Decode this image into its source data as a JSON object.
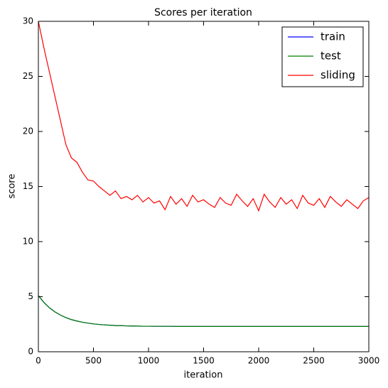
{
  "chart_data": {
    "type": "line",
    "title": "Scores per iteration",
    "xlabel": "iteration",
    "ylabel": "score",
    "x": [
      0,
      50,
      100,
      150,
      200,
      250,
      300,
      350,
      400,
      450,
      500,
      550,
      600,
      650,
      700,
      750,
      800,
      850,
      900,
      950,
      1000,
      1050,
      1100,
      1150,
      1200,
      1250,
      1300,
      1350,
      1400,
      1450,
      1500,
      1550,
      1600,
      1650,
      1700,
      1750,
      1800,
      1850,
      1900,
      1950,
      2000,
      2050,
      2100,
      2150,
      2200,
      2250,
      2300,
      2350,
      2400,
      2450,
      2500,
      2550,
      2600,
      2650,
      2700,
      2750,
      2800,
      2850,
      2900,
      2950,
      3000
    ],
    "series": [
      {
        "name": "train",
        "color": "#0000ff",
        "values": [
          5.1,
          4.48,
          4.0,
          3.62,
          3.33,
          3.1,
          2.92,
          2.79,
          2.68,
          2.6,
          2.53,
          2.48,
          2.44,
          2.41,
          2.38,
          2.37,
          2.35,
          2.34,
          2.33,
          2.32,
          2.32,
          2.31,
          2.31,
          2.31,
          2.31,
          2.3,
          2.3,
          2.3,
          2.3,
          2.3,
          2.3,
          2.3,
          2.3,
          2.3,
          2.3,
          2.3,
          2.3,
          2.3,
          2.3,
          2.3,
          2.3,
          2.3,
          2.3,
          2.3,
          2.3,
          2.3,
          2.3,
          2.3,
          2.3,
          2.3,
          2.3,
          2.3,
          2.3,
          2.3,
          2.3,
          2.3,
          2.3,
          2.3,
          2.3,
          2.3,
          2.3
        ]
      },
      {
        "name": "test",
        "color": "#008000",
        "values": [
          5.1,
          4.48,
          4.0,
          3.62,
          3.33,
          3.1,
          2.92,
          2.79,
          2.68,
          2.6,
          2.53,
          2.48,
          2.44,
          2.41,
          2.38,
          2.37,
          2.35,
          2.34,
          2.33,
          2.32,
          2.32,
          2.31,
          2.31,
          2.31,
          2.31,
          2.3,
          2.3,
          2.3,
          2.3,
          2.3,
          2.3,
          2.3,
          2.3,
          2.3,
          2.3,
          2.3,
          2.3,
          2.3,
          2.3,
          2.3,
          2.3,
          2.3,
          2.3,
          2.3,
          2.3,
          2.3,
          2.3,
          2.3,
          2.3,
          2.3,
          2.3,
          2.3,
          2.3,
          2.3,
          2.3,
          2.3,
          2.3,
          2.3,
          2.3,
          2.3,
          2.3
        ]
      },
      {
        "name": "sliding",
        "color": "#ff0000",
        "values": [
          30,
          27.6,
          25.4,
          23.2,
          21.0,
          18.8,
          17.6,
          17.2,
          16.3,
          15.6,
          15.5,
          15.0,
          14.6,
          14.2,
          14.6,
          13.9,
          14.1,
          13.8,
          14.2,
          13.6,
          14.0,
          13.5,
          13.7,
          12.9,
          14.1,
          13.4,
          13.9,
          13.2,
          14.2,
          13.6,
          13.8,
          13.4,
          13.1,
          14.0,
          13.5,
          13.3,
          14.3,
          13.7,
          13.2,
          13.9,
          12.8,
          14.3,
          13.6,
          13.1,
          14.0,
          13.4,
          13.8,
          13.0,
          14.2,
          13.5,
          13.3,
          13.9,
          13.1,
          14.1,
          13.6,
          13.2,
          13.8,
          13.4,
          13.0,
          13.7,
          14.0
        ]
      }
    ],
    "xlim": [
      0,
      3000
    ],
    "xticks": [
      0,
      500,
      1000,
      1500,
      2000,
      2500,
      3000
    ],
    "ylim": [
      0,
      30
    ],
    "yticks": [
      0,
      5,
      10,
      15,
      20,
      25,
      30
    ],
    "legend": "upper right",
    "grid": false
  }
}
